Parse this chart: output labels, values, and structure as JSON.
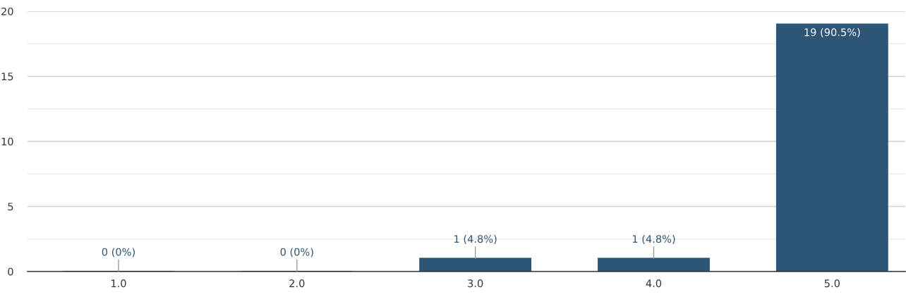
{
  "chart_data": {
    "type": "bar",
    "categories": [
      "1.0",
      "2.0",
      "3.0",
      "4.0",
      "5.0"
    ],
    "values": [
      0,
      0,
      1,
      1,
      19
    ],
    "color": "#2c5577",
    "value_labels": [
      "0 (0%)",
      "0 (0%)",
      "1 (4.8%)",
      "1 (4.8%)",
      "19 (90.5%)"
    ],
    "ylim": [
      0,
      20
    ],
    "yticks": [
      0,
      {
        "value": 2.5,
        "label": null
      },
      5,
      {
        "value": 7.5,
        "label": null
      },
      10,
      {
        "value": 12.5,
        "label": null
      },
      15,
      {
        "value": 17.5,
        "label": null
      },
      20
    ],
    "grid": "y",
    "legend": false
  }
}
